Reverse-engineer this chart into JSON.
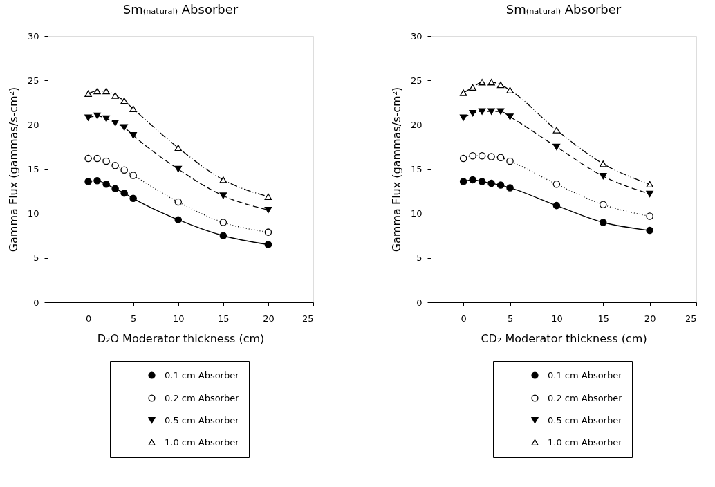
{
  "chart_data": [
    {
      "type": "line",
      "title": "Sm₍ₙₐₜᵤᵣₐₗ₎ Absorber",
      "xlabel": "D₂O Moderator thickness (cm)",
      "ylabel": "Gamma Flux (gammas/s-cm²)",
      "x": [
        0,
        1,
        2,
        3,
        4,
        5,
        10,
        15,
        20
      ],
      "xlim": [
        -4.5,
        25
      ],
      "xticks": [
        0,
        5,
        10,
        15,
        20,
        25
      ],
      "ylim": [
        0,
        30
      ],
      "yticks": [
        0,
        5,
        10,
        15,
        20,
        25,
        30
      ],
      "grid": false,
      "legend": "bottom",
      "series": [
        {
          "name": "0.1 cm Absorber",
          "color": "#000000",
          "marker": "circle",
          "line_style": "solid",
          "values": [
            13.6,
            13.7,
            13.3,
            12.8,
            12.3,
            11.7,
            9.3,
            7.5,
            6.5
          ]
        },
        {
          "name": "0.2 cm Absorber",
          "color": "#000000",
          "marker": "circle-open",
          "line_style": "dotted",
          "values": [
            16.2,
            16.2,
            15.9,
            15.4,
            14.9,
            14.3,
            11.3,
            9.0,
            7.9
          ]
        },
        {
          "name": "0.5 cm Absorber",
          "color": "#000000",
          "marker": "triangle-down",
          "line_style": "dashed",
          "values": [
            20.8,
            21.0,
            20.7,
            20.2,
            19.7,
            18.8,
            15.0,
            12.0,
            10.4
          ]
        },
        {
          "name": "1.0 cm Absorber",
          "color": "#000000",
          "marker": "triangle-open",
          "line_style": "dashdot",
          "values": [
            23.5,
            23.8,
            23.8,
            23.3,
            22.7,
            21.8,
            17.4,
            13.8,
            11.9
          ]
        }
      ]
    },
    {
      "type": "line",
      "title": "Sm₍ₙₐₜᵤᵣₐₗ₎ Absorber",
      "xlabel": "CD₂ Moderator thickness (cm)",
      "ylabel": "Gamma Flux (gammas/s-cm²)",
      "x": [
        0,
        1,
        2,
        3,
        4,
        5,
        10,
        15,
        20
      ],
      "xlim": [
        -3.5,
        25
      ],
      "xticks": [
        0,
        5,
        10,
        15,
        20,
        25
      ],
      "ylim": [
        0,
        30
      ],
      "yticks": [
        0,
        5,
        10,
        15,
        20,
        25,
        30
      ],
      "grid": false,
      "legend": "bottom",
      "series": [
        {
          "name": "0.1 cm Absorber",
          "color": "#000000",
          "marker": "circle",
          "line_style": "solid",
          "values": [
            13.6,
            13.8,
            13.6,
            13.4,
            13.2,
            12.9,
            10.9,
            9.0,
            8.1
          ]
        },
        {
          "name": "0.2 cm Absorber",
          "color": "#000000",
          "marker": "circle-open",
          "line_style": "dotted",
          "values": [
            16.2,
            16.5,
            16.5,
            16.4,
            16.3,
            15.9,
            13.3,
            11.0,
            9.7
          ]
        },
        {
          "name": "0.5 cm Absorber",
          "color": "#000000",
          "marker": "triangle-down",
          "line_style": "dashed",
          "values": [
            20.8,
            21.3,
            21.5,
            21.5,
            21.5,
            20.9,
            17.5,
            14.2,
            12.2
          ]
        },
        {
          "name": "1.0 cm Absorber",
          "color": "#000000",
          "marker": "triangle-open",
          "line_style": "dashdot",
          "values": [
            23.6,
            24.2,
            24.8,
            24.8,
            24.5,
            23.9,
            19.4,
            15.6,
            13.3
          ]
        }
      ]
    }
  ]
}
